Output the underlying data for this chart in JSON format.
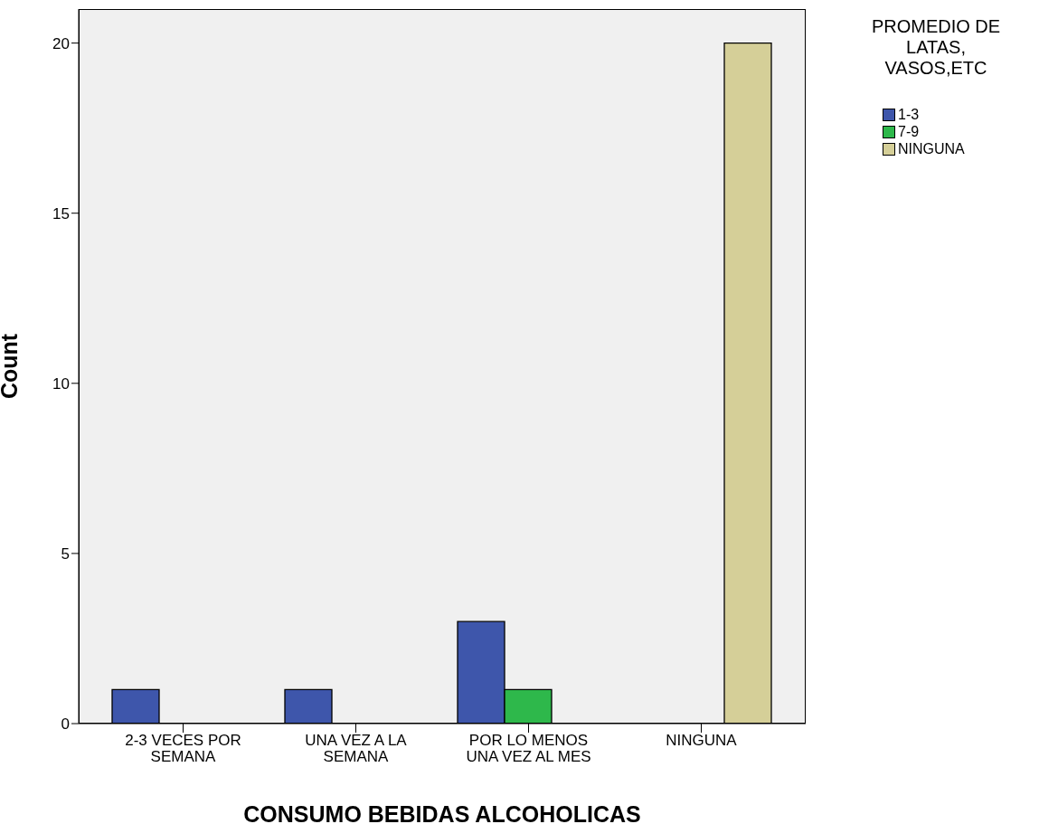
{
  "chart_data": {
    "type": "bar",
    "xlabel": "CONSUMO BEBIDAS ALCOHOLICAS",
    "ylabel": "Count",
    "legend_title": "PROMEDIO DE LATAS, VASOS,ETC",
    "categories": [
      "2-3 VECES POR SEMANA",
      "UNA VEZ A LA SEMANA",
      "POR LO MENOS UNA VEZ AL MES",
      "NINGUNA"
    ],
    "series": [
      {
        "name": "1-3",
        "color": "#3e56ab",
        "values": [
          1,
          1,
          3,
          null
        ]
      },
      {
        "name": "7-9",
        "color": "#2eb84b",
        "values": [
          null,
          null,
          1,
          null
        ]
      },
      {
        "name": "NINGUNA",
        "color": "#d5cf98",
        "values": [
          null,
          null,
          null,
          20
        ]
      }
    ],
    "ylim": [
      0,
      21
    ],
    "yticks": [
      0,
      5,
      10,
      15,
      20
    ],
    "grid": false,
    "legend": "top right"
  }
}
